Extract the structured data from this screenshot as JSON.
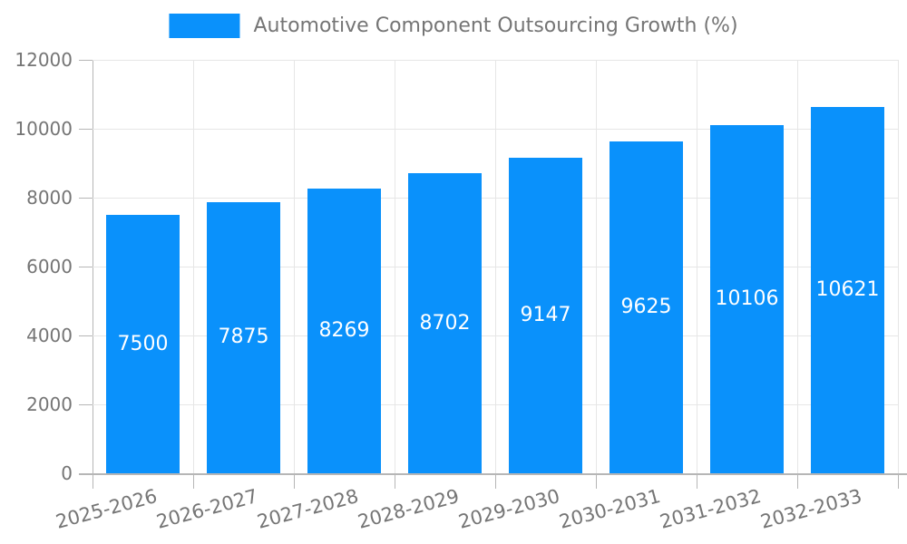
{
  "chart_data": {
    "type": "bar",
    "title": "Automotive Component Outsourcing Growth (%)",
    "legend": "Automotive Component Outsourcing Growth (%)",
    "legend_position": "top",
    "categories": [
      "2025-2026",
      "2026-2027",
      "2027-2028",
      "2028-2029",
      "2029-2030",
      "2030-2031",
      "2031-2032",
      "2032-2033"
    ],
    "series": [
      {
        "name": "Automotive Component Outsourcing Growth (%)",
        "values": [
          7500,
          7875,
          8269,
          8702,
          9147,
          9625,
          10106,
          10621
        ]
      }
    ],
    "value_labels": [
      "7500",
      "7875",
      "8269",
      "8702",
      "9147",
      "9625",
      "10106",
      "10621"
    ],
    "xlabel": "",
    "ylabel": "",
    "ylim": [
      0,
      12000
    ],
    "yticks": [
      0,
      2000,
      4000,
      6000,
      8000,
      10000,
      12000
    ],
    "ytick_labels": [
      "0",
      "2000",
      "4000",
      "6000",
      "8000",
      "10000",
      "12000"
    ],
    "grid": true,
    "colors": {
      "bar": "#0a91fb",
      "bar_label": "#ffffff",
      "grid": "#e6e6e6",
      "axis": "#b6b6b6",
      "text": "#757575",
      "background": "#ffffff"
    }
  }
}
